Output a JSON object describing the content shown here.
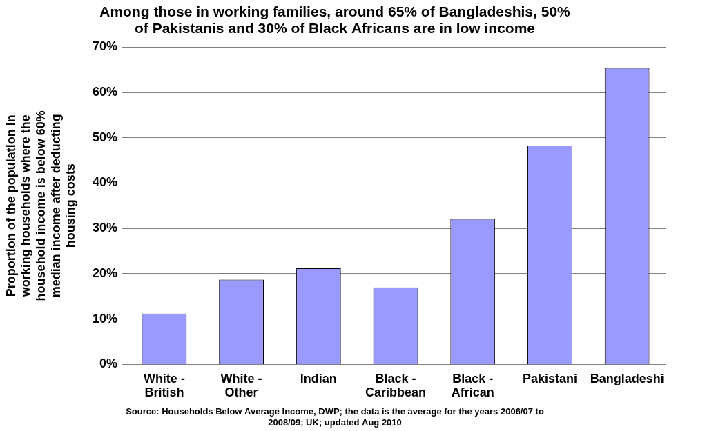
{
  "chart_data": {
    "type": "bar",
    "title": [
      "Among those in working families, around 65% of Bangladeshis, 50%",
      "of Pakistanis and 30% of Black Africans are in low income"
    ],
    "y_label": [
      "Proportion of the population in",
      "working households where the",
      "household income is below 60%",
      "median income after deducting",
      "housing costs"
    ],
    "source": [
      "Source: Households Below Average Income, DWP; the data is the average for the years 2006/07 to",
      "2008/09; UK; updated Aug 2010"
    ],
    "categories": [
      "White - British",
      "White - Other",
      "Indian",
      "Black - Caribbean",
      "Black - African",
      "Pakistani",
      "Bangladeshi"
    ],
    "values": [
      11.2,
      18.7,
      21.2,
      17.0,
      32.1,
      48.3,
      65.4
    ],
    "color": "#9999ff",
    "ylim": [
      0,
      70
    ],
    "yticks": [
      {
        "value": 0,
        "label": "0%"
      },
      {
        "value": 10,
        "label": "10%"
      },
      {
        "value": 20,
        "label": "20%"
      },
      {
        "value": 30,
        "label": "30%"
      },
      {
        "value": 40,
        "label": "40%"
      },
      {
        "value": 50,
        "label": "50%"
      },
      {
        "value": 60,
        "label": "60%"
      },
      {
        "value": 70,
        "label": "70%"
      }
    ],
    "grid": true
  }
}
